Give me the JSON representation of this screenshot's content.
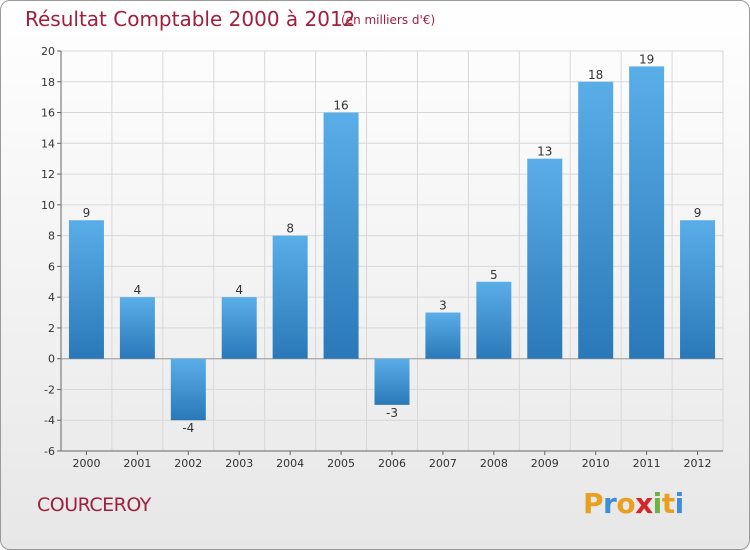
{
  "header": {
    "title": "Résultat Comptable 2000 à 2012",
    "unit_note": "(en milliers d'€)"
  },
  "footer": {
    "commune_name": "COURCEROY",
    "logo": {
      "letters": [
        "P",
        "r",
        "o",
        "x",
        "i",
        "t",
        "i"
      ],
      "colors": [
        "#e8a01e",
        "#3f8fd8",
        "#e8a01e",
        "#d6242a",
        "#6cb33f",
        "#e8a01e",
        "#3f8fd8"
      ]
    }
  },
  "colors": {
    "title": "#a01f3c",
    "bar_light": "#5aaee8",
    "bar_dark": "#2a78b8",
    "grid": "#d8d8d8",
    "zero_line": "#999999"
  },
  "chart_data": {
    "type": "bar",
    "title": "Résultat Comptable 2000 à 2012",
    "subtitle": "(en milliers d'€)",
    "xlabel": "",
    "ylabel": "",
    "categories": [
      "2000",
      "2001",
      "2002",
      "2003",
      "2004",
      "2005",
      "2006",
      "2007",
      "2008",
      "2009",
      "2010",
      "2011",
      "2012"
    ],
    "values": [
      9,
      4,
      -4,
      4,
      8,
      16,
      -3,
      3,
      5,
      13,
      18,
      19,
      9
    ],
    "data_labels": [
      "9",
      "4",
      "-4",
      "4",
      "8",
      "16",
      "-3",
      "3",
      "5",
      "13",
      "18",
      "19",
      "9"
    ],
    "ylim": [
      -6,
      20
    ],
    "yticks": [
      -6,
      -4,
      -2,
      0,
      2,
      4,
      6,
      8,
      10,
      12,
      14,
      16,
      18,
      20
    ],
    "grid": true,
    "legend": "none"
  }
}
